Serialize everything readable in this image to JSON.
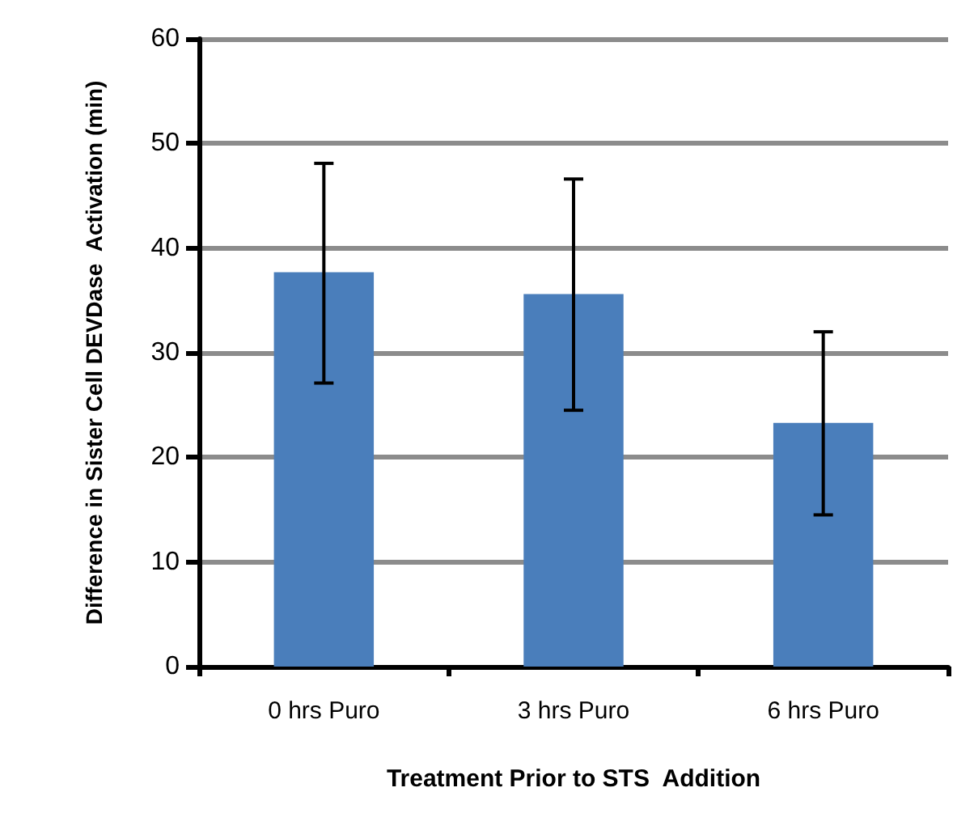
{
  "chart_data": {
    "type": "bar",
    "xlabel": "Treatment Prior to STS  Addition",
    "ylabel": "Difference in Sister Cell DEVDase  Activation (min)",
    "categories": [
      "0 hrs Puro",
      "3 hrs Puro",
      "6 hrs Puro"
    ],
    "values": [
      37.7,
      35.6,
      23.3
    ],
    "color": "#4a7ebb",
    "errors": [
      [
        27.1,
        48.1
      ],
      [
        24.5,
        46.6
      ],
      [
        14.5,
        32.0
      ]
    ],
    "ylim": [
      0,
      60
    ],
    "yticks": [
      0,
      10,
      20,
      30,
      40,
      50,
      60
    ],
    "grid": "y"
  }
}
